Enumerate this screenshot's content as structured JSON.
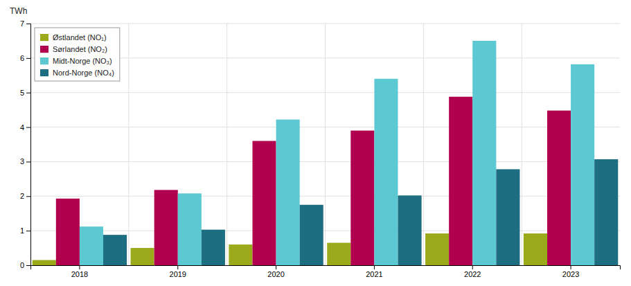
{
  "chart_data": {
    "type": "bar",
    "ylabel": "TWh",
    "categories": [
      "2018",
      "2019",
      "2020",
      "2021",
      "2022",
      "2023"
    ],
    "series": [
      {
        "name": "Østlandet (NO₁)",
        "color": "#9aaa1a",
        "values": [
          0.15,
          0.5,
          0.6,
          0.65,
          0.92,
          0.92
        ]
      },
      {
        "name": "Sørlandet (NO₂)",
        "color": "#b0004e",
        "values": [
          1.93,
          2.18,
          3.6,
          3.9,
          4.88,
          4.48
        ]
      },
      {
        "name": "Midt-Norge (NO₃)",
        "color": "#5bc8d2",
        "values": [
          1.12,
          2.08,
          4.22,
          5.4,
          6.5,
          5.82
        ]
      },
      {
        "name": "Nord-Norge (NO₄)",
        "color": "#1e6e82",
        "values": [
          0.88,
          1.03,
          1.75,
          2.02,
          2.78,
          3.07
        ]
      }
    ],
    "ylim": [
      0,
      7
    ],
    "yticks": [
      0,
      1,
      2,
      3,
      4,
      5,
      6,
      7
    ],
    "grid": true,
    "legend": "top-left"
  }
}
